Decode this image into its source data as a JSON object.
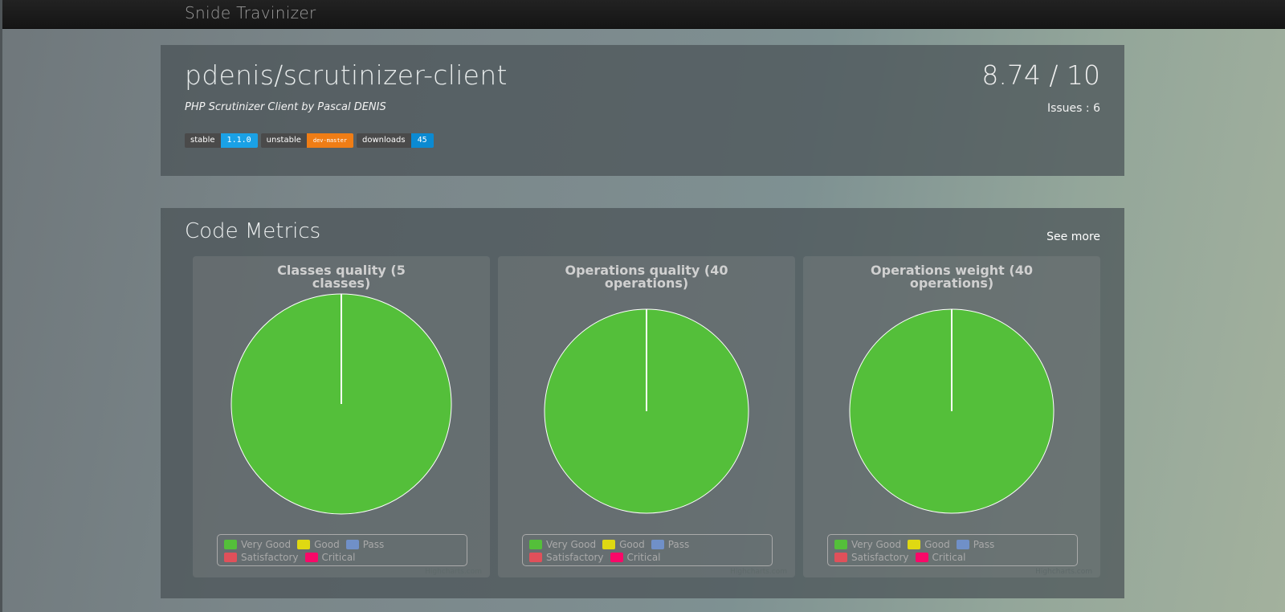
{
  "app": {
    "brand": "Snide Travinizer"
  },
  "repo": {
    "name": "pdenis/scrutinizer-client",
    "description": "PHP Scrutinizer Client by Pascal DENIS",
    "score": "8.74 / 10",
    "issues": "Issues : 6",
    "badges": [
      {
        "key": "stable",
        "value": "1.1.0",
        "color": "#1aa1e6"
      },
      {
        "key": "unstable",
        "value": "dev-master",
        "color": "#f07d15"
      },
      {
        "key": "downloads",
        "value": "45",
        "color": "#0b8ad2"
      }
    ]
  },
  "metrics": {
    "title": "Code Metrics",
    "see_more": "See more"
  },
  "legend": {
    "colors": [
      "#54bf3a",
      "#dfd912",
      "#7090c8",
      "#e0505a",
      "#fa0868"
    ]
  },
  "chart_credit": "Highcharts.com",
  "chart_data": [
    {
      "type": "pie",
      "title": "Classes quality (5 classes)",
      "categories": [
        "Very Good",
        "Good",
        "Pass",
        "Satisfactory",
        "Critical"
      ],
      "values": [
        5,
        0,
        0,
        0,
        0
      ]
    },
    {
      "type": "pie",
      "title": "Operations quality (40 operations)",
      "categories": [
        "Very Good",
        "Good",
        "Pass",
        "Satisfactory",
        "Critical"
      ],
      "values": [
        40,
        0,
        0,
        0,
        0
      ]
    },
    {
      "type": "pie",
      "title": "Operations weight (40 operations)",
      "categories": [
        "Very Good",
        "Good",
        "Pass",
        "Satisfactory",
        "Critical"
      ],
      "values": [
        40,
        0,
        0,
        0,
        0
      ]
    }
  ]
}
